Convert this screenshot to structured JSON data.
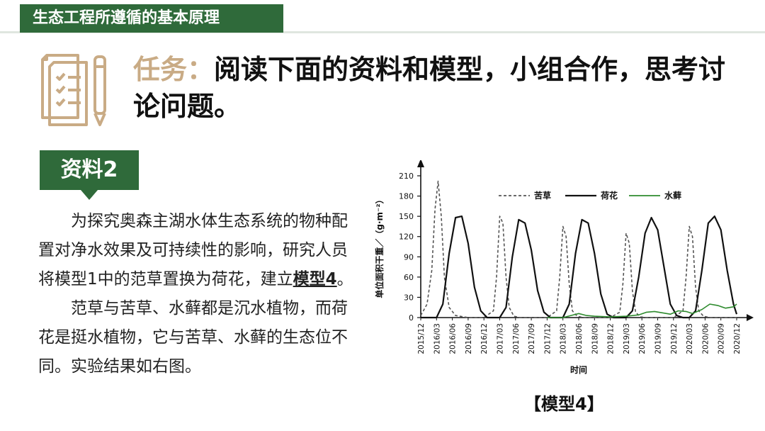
{
  "header": {
    "title": "生态工程所遵循的基本原理"
  },
  "task": {
    "lead": "任务：",
    "text": "阅读下面的资料和模型，小组合作，思考讨论问题。"
  },
  "material": {
    "tag": "资料2",
    "p1_before": "为探究奥森主湖水体生态系统的物种配置对净水效果及可持续性的影响，研究人员将模型1中的范草置换为荷花，建立",
    "p1_emph": "模型4",
    "p1_after": "。",
    "p2": "范草与苦草、水藓都是沉水植物，而荷花是挺水植物，它与苦草、水藓的生态位不同。实验结果如右图。"
  },
  "caption": "【模型4】",
  "chart_data": {
    "type": "line",
    "xlabel": "时间",
    "ylabel": "单位面积干重／（g·m⁻²）",
    "ylim": [
      0,
      210
    ],
    "yticks": [
      0,
      30,
      60,
      90,
      120,
      150,
      180,
      210
    ],
    "xticks": [
      "2015/12",
      "2016/03",
      "2016/06",
      "2016/09",
      "2016/12",
      "2017/03",
      "2017/06",
      "2017/09",
      "2017/12",
      "2018/03",
      "2018/06",
      "2018/09",
      "2018/12",
      "2019/03",
      "2019/06",
      "2019/09",
      "2019/12",
      "2020/03",
      "2020/06",
      "2020/09",
      "2020/12"
    ],
    "legend_position": "top",
    "series": [
      {
        "name": "苦草",
        "style": "dashed",
        "color": "#555555",
        "x": [
          0,
          0.4,
          0.7,
          0.9,
          1.1,
          1.3,
          1.5,
          1.8,
          2.2,
          3,
          4,
          4.6,
          4.8,
          5,
          5.2,
          5.4,
          5.6,
          5.9,
          6.3,
          7,
          8,
          8.6,
          8.8,
          9,
          9.2,
          9.4,
          9.6,
          9.9,
          10.3,
          11,
          12,
          12.6,
          12.8,
          13,
          13.2,
          13.4,
          13.6,
          13.9,
          14.3,
          15,
          16,
          16.6,
          16.8,
          17,
          17.2,
          17.4,
          17.6,
          17.9,
          18.3,
          19,
          20
        ],
        "y": [
          3,
          20,
          70,
          160,
          202,
          150,
          60,
          15,
          3,
          0,
          0,
          10,
          60,
          150,
          140,
          60,
          15,
          2,
          0,
          0,
          0,
          10,
          60,
          135,
          120,
          50,
          10,
          2,
          0,
          0,
          0,
          8,
          50,
          125,
          110,
          40,
          8,
          1,
          0,
          0,
          0,
          10,
          60,
          135,
          120,
          45,
          10,
          2,
          0,
          0,
          0
        ]
      },
      {
        "name": "荷花",
        "style": "solid",
        "color": "#111111",
        "x": [
          0,
          1,
          1.4,
          1.8,
          2.2,
          2.6,
          3,
          3.4,
          3.8,
          4.2,
          4.6,
          5,
          5.4,
          5.8,
          6.2,
          6.6,
          7,
          7.4,
          7.8,
          8.2,
          8.6,
          9,
          9.4,
          9.8,
          10.2,
          10.6,
          11,
          11.4,
          11.8,
          12.2,
          12.6,
          13,
          13.4,
          13.8,
          14.2,
          14.6,
          15,
          15.4,
          15.8,
          16.2,
          16.6,
          17,
          17.4,
          17.8,
          18.2,
          18.6,
          19,
          19.4,
          19.8,
          20
        ],
        "y": [
          0,
          0,
          20,
          95,
          148,
          150,
          110,
          45,
          10,
          0,
          0,
          0,
          15,
          90,
          145,
          140,
          100,
          40,
          8,
          0,
          0,
          0,
          20,
          95,
          145,
          140,
          95,
          35,
          5,
          0,
          0,
          0,
          10,
          60,
          125,
          148,
          130,
          75,
          20,
          3,
          0,
          0,
          10,
          70,
          140,
          150,
          130,
          70,
          20,
          5
        ]
      },
      {
        "name": "水藓",
        "style": "solid",
        "color": "#2e8b2e",
        "x": [
          8,
          9,
          9.5,
          10,
          10.5,
          11,
          12,
          13,
          13.8,
          14.3,
          14.8,
          15.3,
          15.8,
          16.3,
          16.8,
          17.2,
          17.8,
          18.3,
          18.8,
          19.3,
          19.8,
          20
        ],
        "y": [
          0,
          0,
          3,
          6,
          3,
          2,
          1,
          2,
          4,
          8,
          9,
          7,
          5,
          10,
          9,
          6,
          12,
          20,
          18,
          14,
          16,
          20
        ]
      }
    ]
  }
}
